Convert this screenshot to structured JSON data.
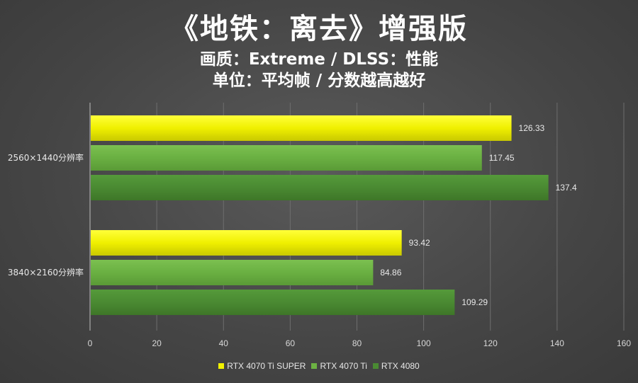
{
  "chart_data": {
    "type": "bar",
    "orientation": "horizontal",
    "title": "《地铁：离去》增强版",
    "subtitle1": "画质：Extreme / DLSS：性能",
    "subtitle2": "单位：平均帧 / 分数越高越好",
    "categories": [
      "2560×1440分辨率",
      "3840×2160分辨率"
    ],
    "series": [
      {
        "name": "RTX 4070 Ti SUPER",
        "color": "#f2f200",
        "values": [
          126.33,
          93.42
        ]
      },
      {
        "name": "RTX 4070 Ti",
        "color": "#6cb243",
        "values": [
          117.45,
          84.86
        ]
      },
      {
        "name": "RTX 4080",
        "color": "#4a8a32",
        "values": [
          137.4,
          109.29
        ]
      }
    ],
    "xlim": [
      0,
      160
    ],
    "xticks": [
      0,
      20,
      40,
      60,
      80,
      100,
      120,
      140,
      160
    ],
    "grid": true,
    "legend": "bottom"
  }
}
